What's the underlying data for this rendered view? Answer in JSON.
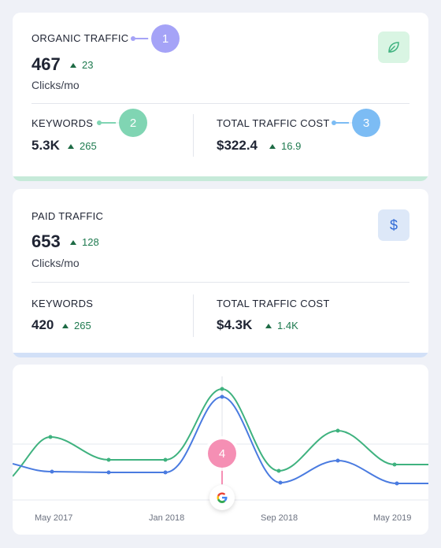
{
  "organic": {
    "title": "ORGANIC TRAFFIC",
    "value": "467",
    "delta": "23",
    "unit": "Clicks/mo",
    "icon": "leaf-icon",
    "keywords_label": "KEYWORDS",
    "keywords_value": "5.3K",
    "keywords_delta": "265",
    "cost_label": "TOTAL TRAFFIC COST",
    "cost_value": "$322.4",
    "cost_delta": "16.9"
  },
  "paid": {
    "title": "PAID TRAFFIC",
    "value": "653",
    "delta": "128",
    "unit": "Clicks/mo",
    "icon": "dollar-icon",
    "icon_glyph": "$",
    "keywords_label": "KEYWORDS",
    "keywords_value": "420",
    "keywords_delta": "265",
    "cost_label": "TOTAL TRAFFIC COST",
    "cost_value": "$4.3K",
    "cost_delta": "1.4K"
  },
  "callouts": [
    "1",
    "2",
    "3",
    "4"
  ],
  "colors": {
    "callout_1": "#a5a3f7",
    "callout_2": "#80d5b3",
    "callout_3": "#7cbcf4",
    "callout_4": "#f58fb4",
    "organic_line": "#3fb27f",
    "paid_line": "#4a7be0",
    "delta_green": "#1e7a4f"
  },
  "chart": {
    "x_ticks": [
      "May 2017",
      "Jan 2018",
      "Sep 2018",
      "May 2019"
    ],
    "marker_icon": "google-icon",
    "marker_glyph": "G"
  }
}
